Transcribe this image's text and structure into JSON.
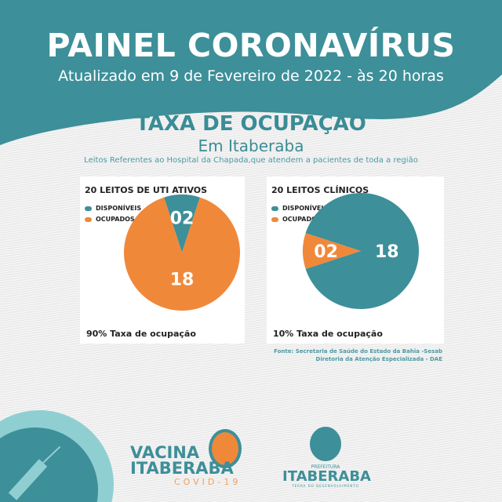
{
  "header": {
    "title": "PAINEL CORONAVÍRUS",
    "updated": "Atualizado em 9 de Fevereiro de 2022 - às 20 horas"
  },
  "section": {
    "title": "TAXA DE OCUPAÇÃO",
    "subtitle": "Em Itaberaba",
    "note": "Leitos Referentes ao Hospital da Chapada,que atendem a pacientes de toda a região"
  },
  "colors": {
    "teal": "#3d8f99",
    "orange": "#f0883a"
  },
  "chart_data": [
    {
      "type": "pie",
      "title": "20 LEITOS DE UTI ATIVOS",
      "legend": [
        "DISPONÍVEIS",
        "OCUPADOS"
      ],
      "slices": [
        {
          "label": "DISPONÍVEIS",
          "value": 2,
          "display": "02",
          "color": "#3d8f99"
        },
        {
          "label": "OCUPADOS",
          "value": 18,
          "display": "18",
          "color": "#f0883a"
        }
      ],
      "footer": "90% Taxa de ocupação"
    },
    {
      "type": "pie",
      "title": "20 LEITOS CLÍNICOS",
      "legend": [
        "DISPONÍVEIS",
        "OCUPADOS"
      ],
      "slices": [
        {
          "label": "DISPONÍVEIS",
          "value": 18,
          "display": "18",
          "color": "#3d8f99"
        },
        {
          "label": "OCUPADOS",
          "value": 2,
          "display": "02",
          "color": "#f0883a"
        }
      ],
      "footer": "10% Taxa de ocupação"
    }
  ],
  "source": {
    "line1": "Fonte: Secretaria de Saúde do Estado da Bahia -Sesab",
    "line2": "Diretoria da Atenção Especializada - DAE"
  },
  "logos": {
    "vacina": {
      "line1": "VACINA",
      "line2": "ITABERABA",
      "line3": "COVID-19"
    },
    "prefeitura": {
      "line1": "PREFEITURA",
      "line2": "ITABERABA",
      "line3": "TERRA DO DESENVOLVIMENTO",
      "seal": "ITABERABA"
    }
  }
}
